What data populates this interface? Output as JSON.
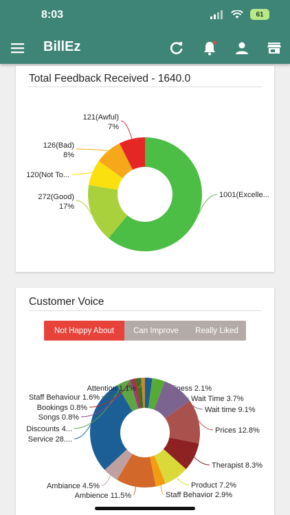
{
  "status": {
    "time": "8:03",
    "battery": "61"
  },
  "app": {
    "title": "BillEz"
  },
  "feedback": {
    "title": "Total Feedback Received - 1640.0",
    "chart_data": {
      "type": "pie",
      "donut": true,
      "categories": [
        "Excellent",
        "Good",
        "Not To...",
        "Bad",
        "Awful"
      ],
      "counts": [
        1001,
        272,
        120,
        126,
        121
      ],
      "values": [
        61,
        17,
        7,
        8,
        7
      ],
      "colors": [
        "#4cbd45",
        "#a8d13c",
        "#fbe00f",
        "#f7a71a",
        "#e52624"
      ],
      "labels": [
        {
          "line1": "1001(Excelle...",
          "line2": ""
        },
        {
          "line1": "272(Good)",
          "line2": "17%"
        },
        {
          "line1": "120(Not To...",
          "line2": ""
        },
        {
          "line1": "126(Bad)",
          "line2": "8%"
        },
        {
          "line1": "121(Awful)",
          "line2": "7%"
        }
      ]
    }
  },
  "voice": {
    "title": "Customer Voice",
    "tabs": [
      "Not Happy About",
      "Can Improve",
      "Really Liked"
    ],
    "active_tab": 0,
    "chart_data": {
      "type": "pie",
      "donut": true,
      "categories": [
        "Cleanliness",
        "Wait Time",
        "Wait time",
        "Prices",
        "Therapist",
        "Product",
        "Staff Behavior",
        "Ambience",
        "Ambiance",
        "Service",
        "Discounts",
        "Songs",
        "Bookings",
        "Staff Behaviour",
        "Attention"
      ],
      "values": [
        2.1,
        3.7,
        9.1,
        12.8,
        8.3,
        7.2,
        2.9,
        11.5,
        4.5,
        28.0,
        4.0,
        0.8,
        0.8,
        1.6,
        1.1
      ],
      "colors": [
        "#1e5c96",
        "#57ab35",
        "#7c6491",
        "#a9524d",
        "#8e2223",
        "#d9d93a",
        "#f39c12",
        "#d2692a",
        "#bfa0a0",
        "#1c5f96",
        "#5ea544",
        "#8b3c8b",
        "#ba2d27",
        "#3d6e2a",
        "#c08a2e"
      ],
      "labels": [
        "Cleanliness 2.1%",
        "Wait Time 3.7%",
        "Wait time 9.1%",
        "Prices 12.8%",
        "Therapist 8.3%",
        "Product 7.2%",
        "Staff Behavior 2.9%",
        "Ambience 11.5%",
        "Ambiance 4.5%",
        "Service 28....",
        "Discounts 4...",
        "Songs 0.8%",
        "Bookings 0.8%",
        "Staff Behaviour 1.6%",
        "Attention 1.1%"
      ]
    }
  }
}
